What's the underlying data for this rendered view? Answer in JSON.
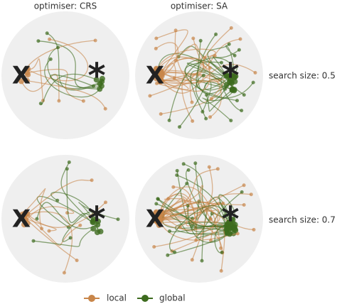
{
  "columns": [
    "optimiser: CRS",
    "optimiser: SA"
  ],
  "rows": [
    "search size: 0.5",
    "search size: 0.7"
  ],
  "legend": [
    {
      "name": "local",
      "color": "#c8864a"
    },
    {
      "name": "global",
      "color": "#3d6b1e"
    }
  ]
}
